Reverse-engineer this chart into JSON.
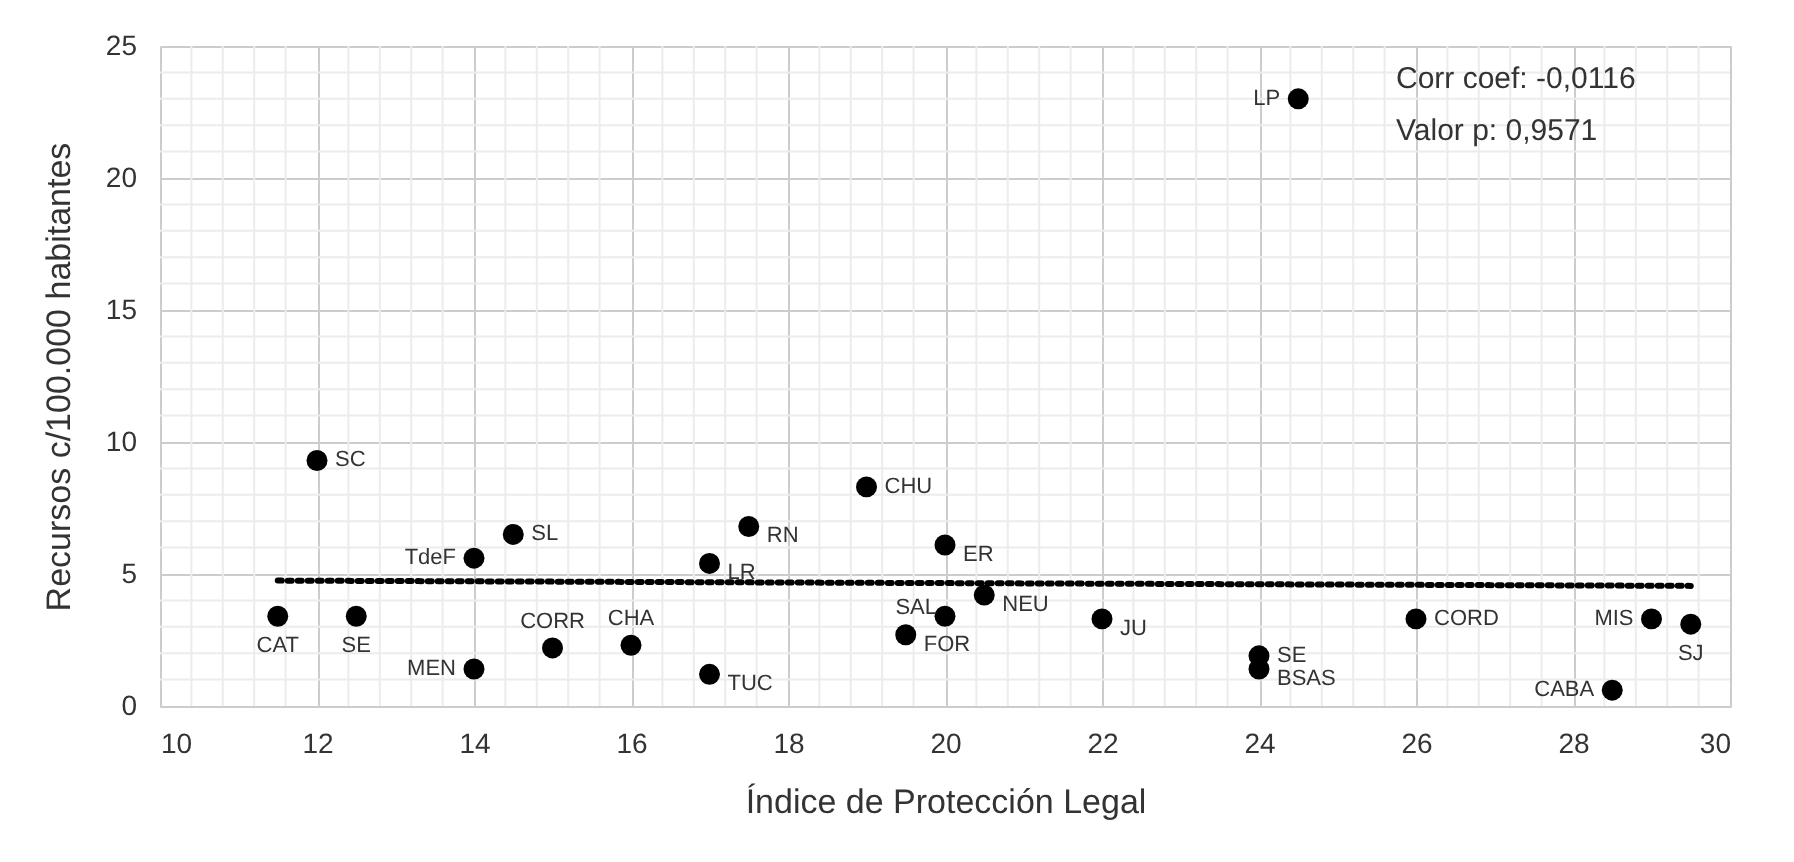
{
  "chart_data": {
    "type": "scatter",
    "xlabel": "Índice de Protección Legal",
    "ylabel": "Recursos c/100.000 habitantes",
    "xlim": [
      10,
      30
    ],
    "xticks": [
      10,
      12,
      14,
      16,
      18,
      20,
      22,
      24,
      26,
      28,
      30
    ],
    "ylim": [
      0,
      25
    ],
    "yticks": [
      0,
      5,
      10,
      15,
      20,
      25
    ],
    "grid": true,
    "series": [
      {
        "color": "#000000",
        "marker": "circle",
        "x": [
          12.0,
          11.5,
          12.5,
          14.0,
          14.5,
          14.0,
          15.0,
          16.0,
          17.0,
          17.0,
          17.5,
          19.0,
          20.0,
          20.0,
          19.5,
          20.5,
          22.0,
          24.0,
          24.0,
          26.0,
          29.0,
          29.5,
          28.5,
          24.5
        ],
        "values": [
          9.3,
          3.4,
          3.4,
          5.6,
          6.5,
          1.4,
          2.2,
          2.3,
          5.4,
          1.2,
          6.8,
          8.3,
          6.1,
          3.4,
          2.7,
          4.2,
          3.3,
          1.9,
          1.4,
          3.3,
          3.3,
          3.1,
          0.6,
          23.0
        ]
      },
      {
        "type": "line",
        "color": "#000000",
        "line_style": "dotted",
        "x": [
          11.5,
          29.5
        ],
        "values": [
          4.75,
          4.55
        ]
      }
    ],
    "annotations": [
      {
        "text": "SC",
        "x": 12.0,
        "y": 9.3
      },
      {
        "text": "CAT",
        "x": 11.5,
        "y": 3.4
      },
      {
        "text": "SE",
        "x": 12.5,
        "y": 3.4
      },
      {
        "text": "TdeF",
        "x": 14.0,
        "y": 5.6
      },
      {
        "text": "SL",
        "x": 14.5,
        "y": 6.5
      },
      {
        "text": "MEN",
        "x": 14.0,
        "y": 1.4
      },
      {
        "text": "CORR",
        "x": 15.0,
        "y": 2.2
      },
      {
        "text": "CHA",
        "x": 16.0,
        "y": 2.3
      },
      {
        "text": "LR",
        "x": 17.0,
        "y": 5.4
      },
      {
        "text": "TUC",
        "x": 17.0,
        "y": 1.2
      },
      {
        "text": "RN",
        "x": 17.5,
        "y": 6.8
      },
      {
        "text": "CHU",
        "x": 19.0,
        "y": 8.3
      },
      {
        "text": "ER",
        "x": 20.0,
        "y": 6.1
      },
      {
        "text": "SAL",
        "x": 20.0,
        "y": 3.4
      },
      {
        "text": "FOR",
        "x": 19.5,
        "y": 2.7
      },
      {
        "text": "NEU",
        "x": 20.5,
        "y": 4.2
      },
      {
        "text": "JU",
        "x": 22.0,
        "y": 3.3
      },
      {
        "text": "SE",
        "x": 24.0,
        "y": 1.9
      },
      {
        "text": "BSAS",
        "x": 24.0,
        "y": 1.4
      },
      {
        "text": "CORD",
        "x": 26.0,
        "y": 3.3
      },
      {
        "text": "MIS",
        "x": 29.0,
        "y": 3.3
      },
      {
        "text": "SJ",
        "x": 29.5,
        "y": 3.1
      },
      {
        "text": "CABA",
        "x": 28.5,
        "y": 0.6
      },
      {
        "text": "LP",
        "x": 24.5,
        "y": 23.0
      },
      "Corr coef: -0,0116",
      "Valor p: 0,9571"
    ]
  }
}
